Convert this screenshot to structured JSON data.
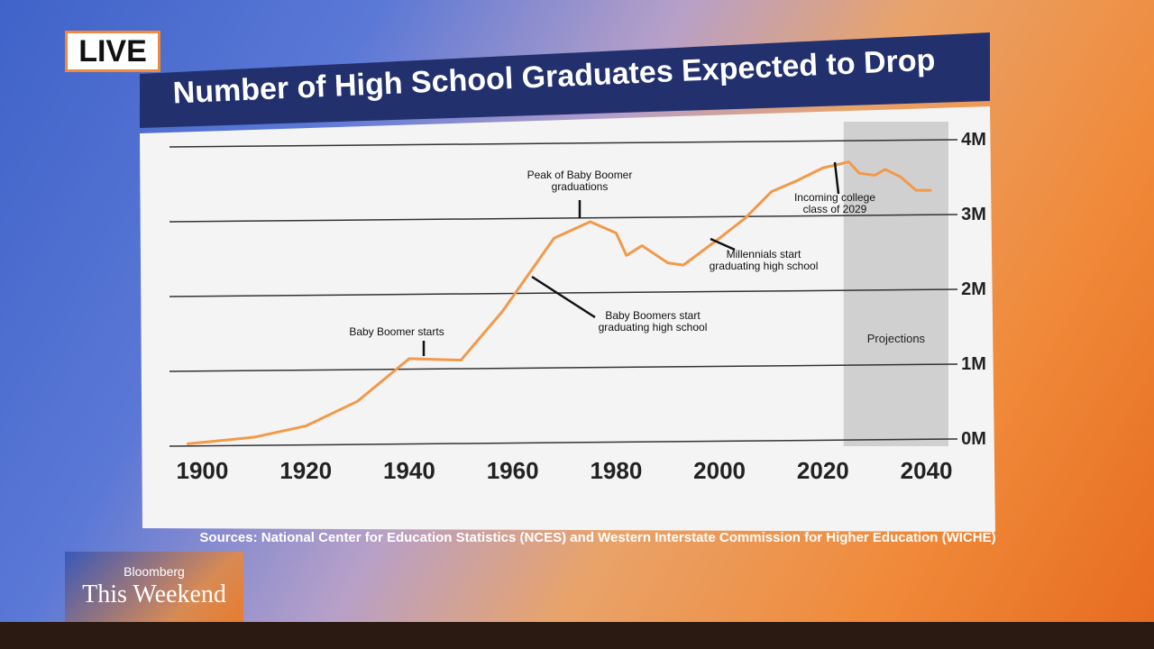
{
  "broadcast": {
    "live": "LIVE",
    "brand": "Bloomberg",
    "show": "This Weekend"
  },
  "chart_data": {
    "type": "line",
    "title": "Number of High School Graduates Expected to Drop",
    "source": "Sources: National Center for Education Statistics (NCES) and Western Interstate Commission for Higher Education (WICHE)",
    "color": "#f2994a",
    "x": [
      1897,
      1910,
      1920,
      1930,
      1940,
      1950,
      1958,
      1968,
      1975,
      1980,
      1982,
      1985,
      1990,
      1993,
      2000,
      2005,
      2010,
      2015,
      2020,
      2025,
      2027,
      2030,
      2032,
      2035,
      2038,
      2041
    ],
    "values": [
      0.03,
      0.12,
      0.27,
      0.6,
      1.17,
      1.15,
      1.8,
      2.78,
      3.0,
      2.85,
      2.55,
      2.68,
      2.45,
      2.42,
      2.78,
      3.05,
      3.4,
      3.55,
      3.72,
      3.8,
      3.65,
      3.62,
      3.7,
      3.6,
      3.42,
      3.42
    ],
    "xlim": [
      1894,
      2046
    ],
    "xticks": [
      1900,
      1920,
      1940,
      1960,
      1980,
      2000,
      2020,
      2040
    ],
    "ylim": [
      0,
      4
    ],
    "yticks": [
      {
        "value": 0,
        "label": "0M"
      },
      {
        "value": 1,
        "label": "1M"
      },
      {
        "value": 2,
        "label": "2M"
      },
      {
        "value": 3,
        "label": "3M"
      },
      {
        "value": 4,
        "label": "4M"
      }
    ],
    "grid": true,
    "shaded_region": {
      "label": "Projections",
      "xlim": [
        2024,
        2046
      ]
    },
    "annotations": [
      {
        "lines": [
          "Baby Boomer starts"
        ],
        "x": 1944
      },
      {
        "lines": [
          "Peak of Baby Boomer",
          "graduations"
        ],
        "x": 1975
      },
      {
        "lines": [
          "Baby Boomers start",
          "graduating high school"
        ],
        "x": 1966
      },
      {
        "lines": [
          "Millennials start",
          "graduating high school"
        ],
        "x": 2000
      },
      {
        "lines": [
          "Incoming college",
          "class of 2029"
        ],
        "x": 2025
      }
    ]
  }
}
